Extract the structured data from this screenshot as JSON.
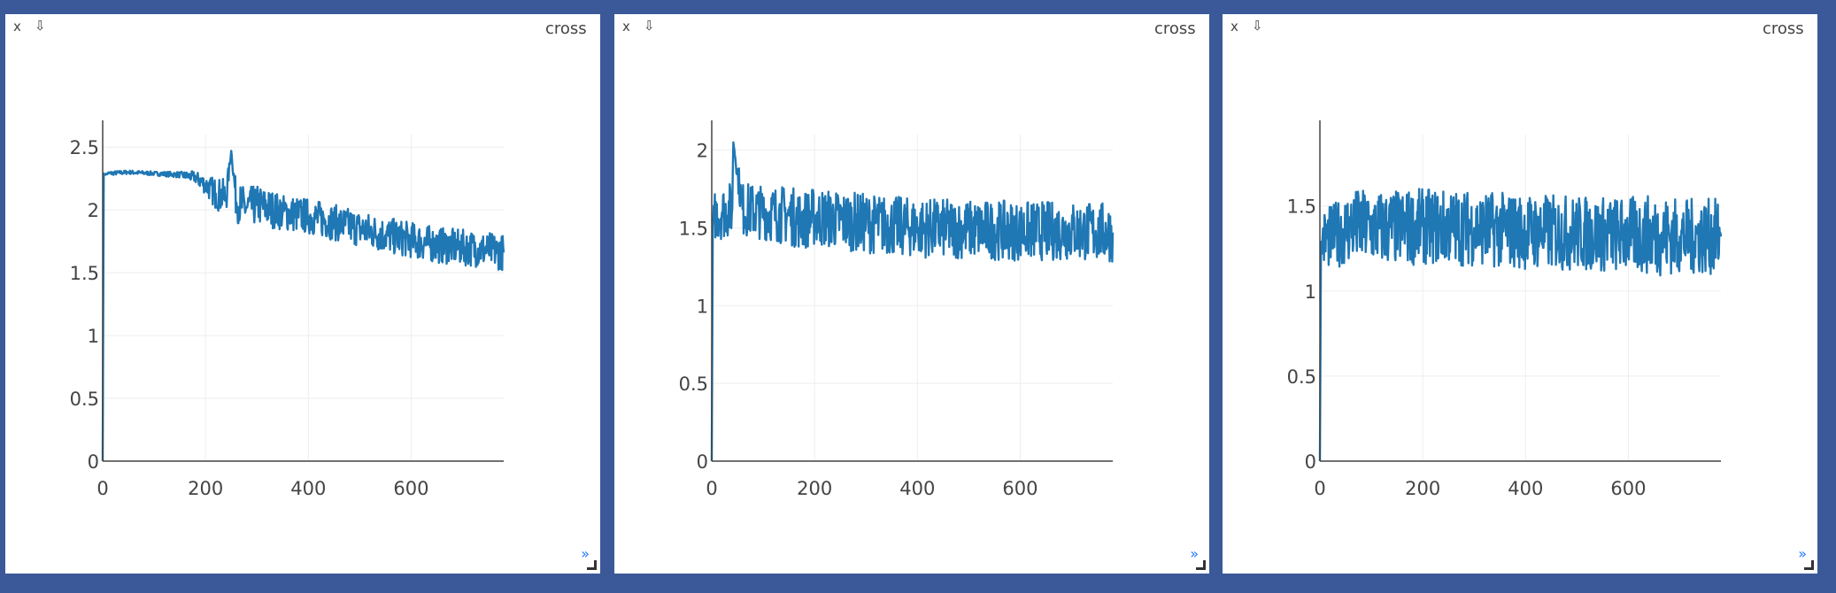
{
  "colors": {
    "background": "#3b5998",
    "pane": "#ffffff",
    "line": "#1f77b4",
    "grid": "#eeeeee",
    "axis": "#444444"
  },
  "panes": [
    {
      "close_label": "x",
      "download_icon": "download-arrow-icon",
      "title": "cross",
      "expand_label": "»"
    },
    {
      "close_label": "x",
      "download_icon": "download-arrow-icon",
      "title": "cross",
      "expand_label": "»"
    },
    {
      "close_label": "x",
      "download_icon": "download-arrow-icon",
      "title": "cross",
      "expand_label": "»"
    }
  ],
  "chart_data": [
    {
      "type": "line",
      "title": "cross",
      "xlim": [
        0,
        780
      ],
      "ylim": [
        0,
        2.6
      ],
      "xticks": [
        0,
        200,
        400,
        600
      ],
      "yticks": [
        0,
        0.5,
        1,
        1.5,
        2,
        2.5
      ],
      "series": [
        {
          "x": [
            0,
            2,
            4,
            10,
            50,
            100,
            150,
            180,
            200,
            220,
            240,
            250,
            260,
            280,
            300,
            350,
            400,
            450,
            500,
            550,
            600,
            650,
            700,
            750,
            780
          ],
          "y": [
            0,
            2.29,
            2.28,
            2.29,
            2.3,
            2.29,
            2.28,
            2.26,
            2.2,
            2.13,
            2.1,
            2.47,
            2.06,
            2.02,
            2.04,
            1.98,
            1.95,
            1.9,
            1.85,
            1.8,
            1.76,
            1.72,
            1.7,
            1.68,
            1.66
          ],
          "noise": [
            0,
            0,
            0,
            0.01,
            0.01,
            0.01,
            0.015,
            0.03,
            0.05,
            0.08,
            0.09,
            0,
            0.1,
            0.1,
            0.1,
            0.09,
            0.09,
            0.09,
            0.09,
            0.09,
            0.09,
            0.09,
            0.09,
            0.09,
            0.09
          ]
        }
      ]
    },
    {
      "type": "line",
      "title": "cross",
      "xlim": [
        0,
        780
      ],
      "ylim": [
        0,
        2.1
      ],
      "xticks": [
        0,
        200,
        400,
        600
      ],
      "yticks": [
        0,
        0.5,
        1,
        1.5,
        2
      ],
      "series": [
        {
          "x": [
            0,
            2,
            5,
            20,
            40,
            42,
            60,
            100,
            150,
            175,
            200,
            300,
            400,
            500,
            600,
            700,
            780
          ],
          "y": [
            0,
            1.5,
            1.58,
            1.6,
            1.62,
            2.05,
            1.62,
            1.6,
            1.58,
            1.55,
            1.57,
            1.53,
            1.5,
            1.49,
            1.48,
            1.48,
            1.47
          ],
          "noise": [
            0,
            0,
            0.1,
            0.11,
            0.11,
            0,
            0.11,
            0.11,
            0.12,
            0.12,
            0.12,
            0.12,
            0.12,
            0.12,
            0.12,
            0.12,
            0.12
          ]
        }
      ]
    },
    {
      "type": "line",
      "title": "cross",
      "xlim": [
        0,
        780
      ],
      "ylim": [
        0,
        1.92
      ],
      "xticks": [
        0,
        200,
        400,
        600
      ],
      "yticks": [
        0,
        0.5,
        1,
        1.5
      ],
      "series": [
        {
          "x": [
            0,
            2,
            5,
            30,
            60,
            100,
            150,
            200,
            300,
            400,
            500,
            600,
            660,
            700,
            780
          ],
          "y": [
            0,
            1.25,
            1.3,
            1.33,
            1.38,
            1.37,
            1.37,
            1.38,
            1.37,
            1.35,
            1.34,
            1.33,
            1.33,
            1.32,
            1.32
          ],
          "noise": [
            0,
            0,
            0.11,
            0.12,
            0.14,
            0.14,
            0.14,
            0.14,
            0.14,
            0.14,
            0.14,
            0.14,
            0.15,
            0.14,
            0.14
          ]
        }
      ]
    }
  ]
}
